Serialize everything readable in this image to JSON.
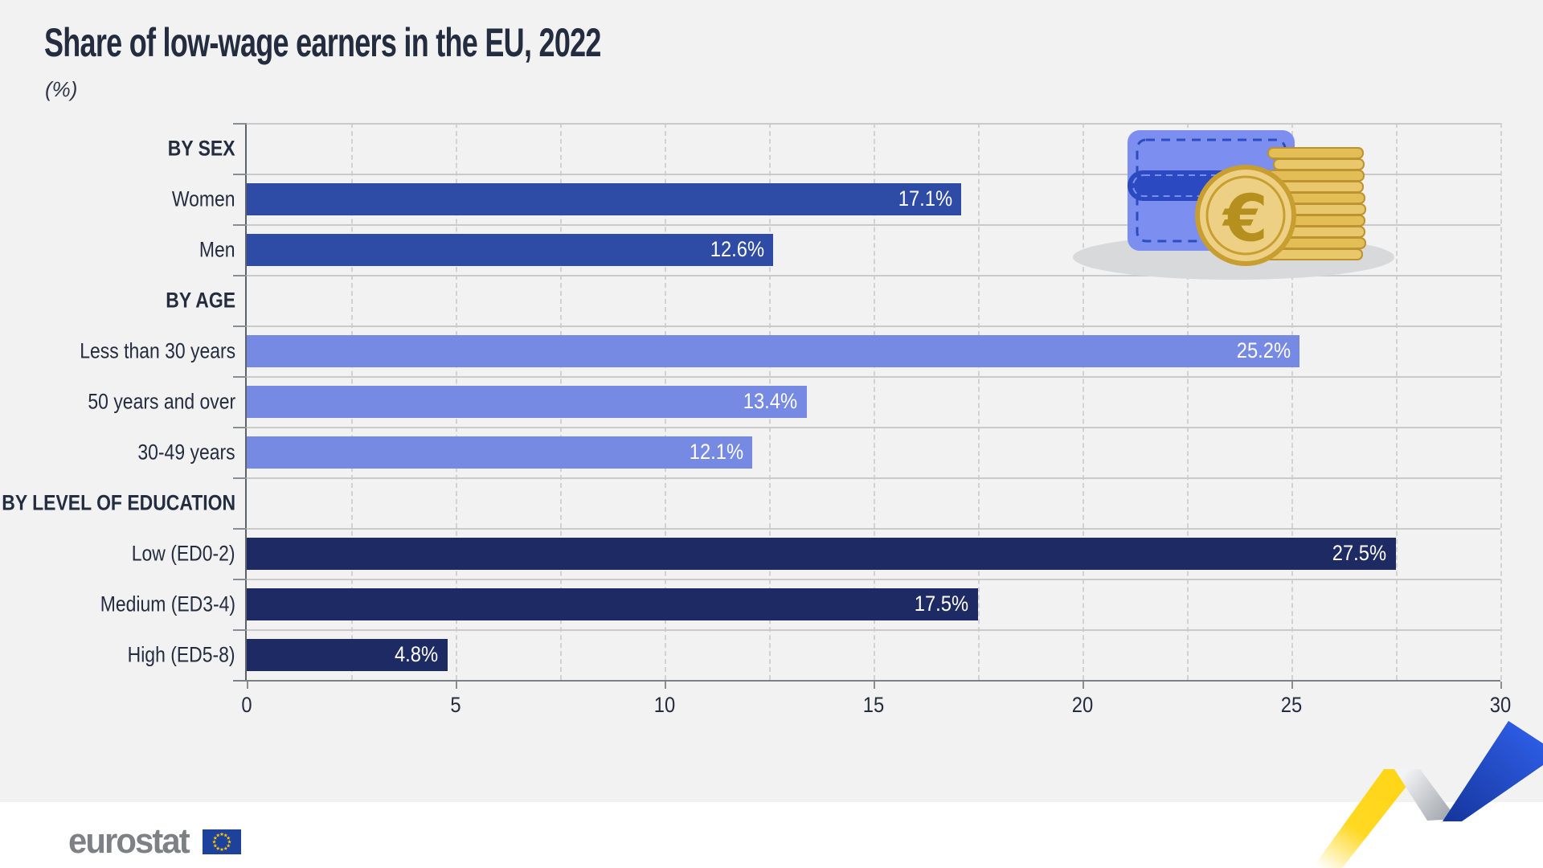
{
  "title": "Share of low-wage earners in the EU, 2022",
  "subtitle": "(%)",
  "chart_data": {
    "type": "bar",
    "orientation": "horizontal",
    "value_unit": "%",
    "xlim": [
      0,
      30
    ],
    "x_ticks": [
      "0",
      "5",
      "10",
      "15",
      "20",
      "25",
      "30"
    ],
    "minor_grid_step": 2.5,
    "grid": "vertical dashed minor gridlines every 2.5, horizontal row separator lines",
    "legend": "none",
    "groups": [
      {
        "header": "BY SEX",
        "bar_color": "#2e4ca6",
        "items": [
          {
            "label": "Women",
            "value": 17.1,
            "value_label": "17.1%"
          },
          {
            "label": "Men",
            "value": 12.6,
            "value_label": "12.6%"
          }
        ]
      },
      {
        "header": "BY AGE",
        "bar_color": "#7689e3",
        "items": [
          {
            "label": "Less than 30 years",
            "value": 25.2,
            "value_label": "25.2%"
          },
          {
            "label": "50 years and over",
            "value": 13.4,
            "value_label": "13.4%"
          },
          {
            "label": "30-49 years",
            "value": 12.1,
            "value_label": "12.1%"
          }
        ]
      },
      {
        "header": "BY LEVEL OF EDUCATION",
        "bar_color": "#1d2a63",
        "items": [
          {
            "label": "Low (ED0-2)",
            "value": 27.5,
            "value_label": "27.5%"
          },
          {
            "label": "Medium (ED3-4)",
            "value": 17.5,
            "value_label": "17.5%"
          },
          {
            "label": "High (ED5-8)",
            "value": 4.8,
            "value_label": "4.8%"
          }
        ]
      }
    ]
  },
  "branding": {
    "logo_text": "eurostat",
    "flag_icon": "eu-flag-icon"
  },
  "decorations": {
    "wallet_illustration": "blue-wallet-with-euro-coin-and-coin-stack",
    "corner_ribbon": "yellow-silver-blue-zigzag-ribbon"
  },
  "colors": {
    "background": "#f2f2f2",
    "footer_background": "#ffffff",
    "text": "#242c3f",
    "bar_sex": "#2e4ca6",
    "bar_age": "#7689e3",
    "bar_education": "#1d2a63",
    "bar_value_text": "#ffffff",
    "ribbon_yellow": "#ffd617",
    "ribbon_blue": "#2653d9",
    "eu_flag_blue": "#1e419b",
    "eu_star_yellow": "#ffcc00",
    "logo_gray": "#7d8084"
  }
}
